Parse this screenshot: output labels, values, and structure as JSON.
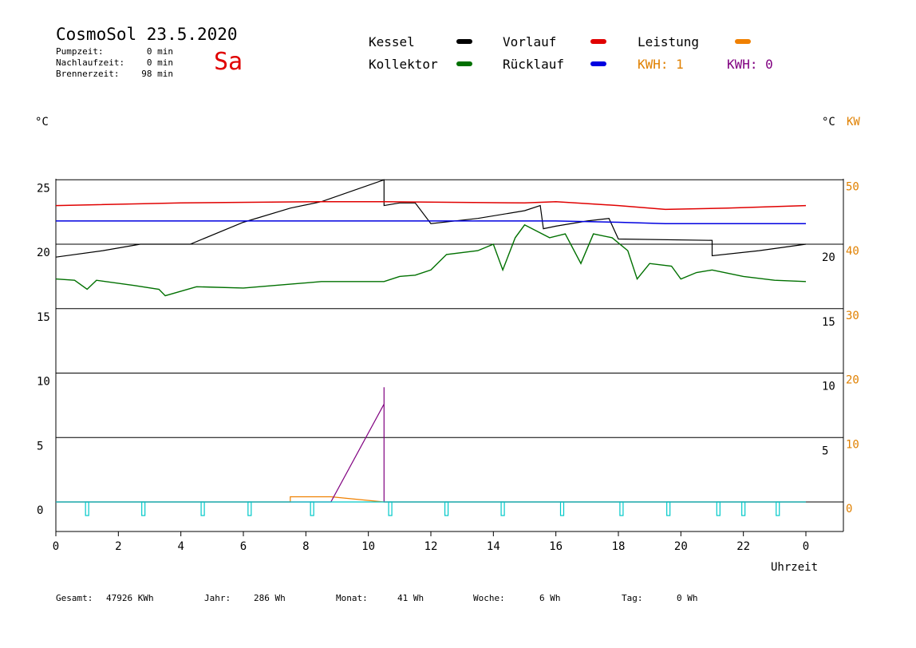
{
  "header": {
    "title": "CosmoSol 23.5.2020",
    "weekday": "Sa",
    "stats": [
      {
        "label": "Pumpzeit:",
        "value": "0 min"
      },
      {
        "label": "Nachlaufzeit:",
        "value": "0 min"
      },
      {
        "label": "Brennerzeit:",
        "value": "98 min"
      }
    ]
  },
  "legend": {
    "kessel": "Kessel",
    "kollektor": "Kollektor",
    "vorlauf": "Vorlauf",
    "ruecklauf": "Rücklauf",
    "leistung": "Leistung",
    "kwh1": "KWH: 1",
    "kwh2": "KWH: 0"
  },
  "colors": {
    "kessel": "#000000",
    "kollektor": "#007000",
    "vorlauf": "#e00000",
    "ruecklauf": "#0000e0",
    "leistung": "#f08000",
    "kwh_purple": "#800080",
    "pump": "#00c8c8"
  },
  "footer": [
    {
      "label": "Gesamt:",
      "value": "47926 KWh"
    },
    {
      "label": "Jahr:",
      "value": "286 Wh"
    },
    {
      "label": "Monat:",
      "value": "41 Wh"
    },
    {
      "label": "Woche:",
      "value": "6 Wh"
    },
    {
      "label": "Tag:",
      "value": "0 Wh"
    }
  ],
  "chart_data": {
    "type": "line",
    "xlabel": "Uhrzeit",
    "ylabel_left": "°C",
    "ylabel_right": "°C",
    "ylabel_right_kw": "KW",
    "xlim": [
      0,
      24
    ],
    "ylim": [
      -2,
      26
    ],
    "x_ticks": [
      "0",
      "2",
      "4",
      "6",
      "8",
      "10",
      "12",
      "14",
      "16",
      "18",
      "20",
      "22",
      "0"
    ],
    "y_left_ticks": [
      25,
      20,
      15,
      10,
      5,
      0
    ],
    "y_right_ticks": [
      20,
      15,
      10,
      5
    ],
    "y_right_kw_ticks": [
      50,
      40,
      30,
      20,
      10,
      0
    ],
    "grid": true,
    "series": [
      {
        "name": "Kessel",
        "x": [
          0,
          1.5,
          2.7,
          4.3,
          6,
          7.5,
          8.5,
          10.5,
          10.5,
          11.0,
          11.5,
          12.0,
          13.5,
          15.0,
          15.5,
          15.6,
          16.0,
          17.0,
          17.7,
          18.0,
          21.0,
          21.0,
          22.5,
          24.0
        ],
        "y": [
          19,
          19.5,
          20,
          20,
          21.7,
          22.8,
          23.3,
          25,
          23.0,
          23.2,
          23.2,
          21.6,
          22.0,
          22.6,
          23.0,
          21.2,
          21.4,
          21.8,
          22.0,
          20.4,
          20.3,
          19.1,
          19.5,
          20.0
        ]
      },
      {
        "name": "Kollektor",
        "x": [
          0,
          0.6,
          1.0,
          1.3,
          2.5,
          3.3,
          3.5,
          4.5,
          6.0,
          7.5,
          8.5,
          10.5,
          11.0,
          11.5,
          12.0,
          12.5,
          13.5,
          14.0,
          14.3,
          14.7,
          15.0,
          15.8,
          16.3,
          16.8,
          17.2,
          17.8,
          18.3,
          18.6,
          19.0,
          19.7,
          20.0,
          20.5,
          21.0,
          22.0,
          23.0,
          24.0
        ],
        "y": [
          17.3,
          17.2,
          16.5,
          17.2,
          16.8,
          16.5,
          16.0,
          16.7,
          16.6,
          16.9,
          17.1,
          17.1,
          17.5,
          17.6,
          18.0,
          19.2,
          19.5,
          20.0,
          18.0,
          20.5,
          21.5,
          20.5,
          20.8,
          18.5,
          20.8,
          20.5,
          19.5,
          17.3,
          18.5,
          18.3,
          17.3,
          17.8,
          18.0,
          17.5,
          17.2,
          17.1
        ]
      },
      {
        "name": "Vorlauf",
        "x": [
          0,
          4,
          8.5,
          10.5,
          15,
          16,
          18,
          19.5,
          21.5,
          24
        ],
        "y": [
          23.0,
          23.2,
          23.3,
          23.3,
          23.2,
          23.3,
          23.0,
          22.7,
          22.8,
          23.0
        ]
      },
      {
        "name": "Rücklauf",
        "x": [
          0,
          4,
          8.5,
          10.5,
          15,
          16,
          18,
          19.5,
          21.5,
          24
        ],
        "y": [
          21.8,
          21.8,
          21.8,
          21.8,
          21.8,
          21.8,
          21.7,
          21.6,
          21.6,
          21.6
        ]
      },
      {
        "name": "Leistung",
        "x": [
          0,
          7.5,
          7.5,
          8.8,
          10.5,
          10.5,
          24
        ],
        "y": [
          0,
          0,
          0.4,
          0.4,
          0,
          0,
          0
        ]
      },
      {
        "name": "KWH: 0",
        "x": [
          0,
          8.8,
          10.5,
          10.5,
          10.5,
          10.5,
          24
        ],
        "y": [
          0,
          0,
          7.6,
          8.9,
          0.5,
          0,
          0
        ]
      }
    ],
    "pump_pulses_x": [
      1.0,
      2.8,
      4.7,
      6.2,
      8.2,
      10.7,
      12.5,
      14.3,
      16.2,
      18.1,
      19.6,
      21.2,
      22.0,
      23.1
    ]
  }
}
